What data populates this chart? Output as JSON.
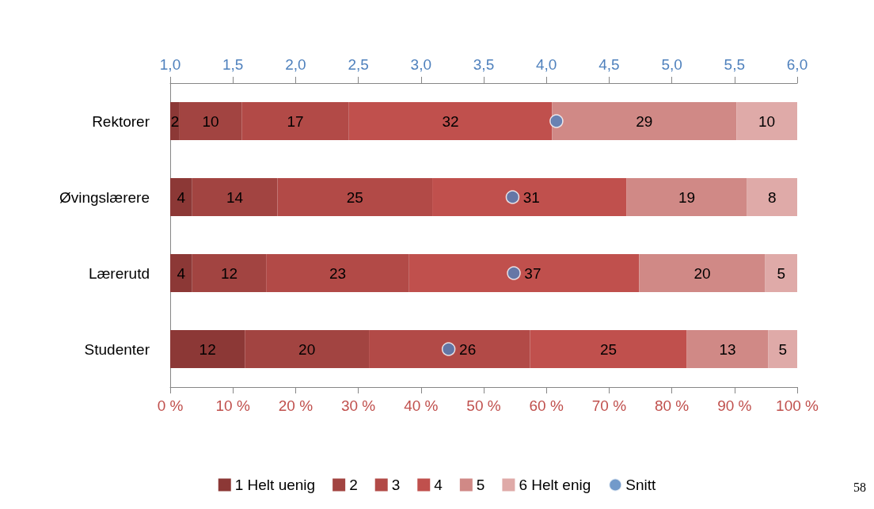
{
  "chart_data": {
    "type": "bar",
    "orientation": "horizontal",
    "stacked": true,
    "grid": false,
    "legend": "bottom",
    "marker": "circle",
    "categories": [
      "Rektorer",
      "Øvingslærere",
      "Lærerutd",
      "Studenter"
    ],
    "xlim": [
      0,
      100
    ],
    "xticks": [
      {
        "value": 0,
        "label": "0 %"
      },
      {
        "value": 10,
        "label": "10 %"
      },
      {
        "value": 20,
        "label": "20 %"
      },
      {
        "value": 30,
        "label": "30 %"
      },
      {
        "value": 40,
        "label": "40 %"
      },
      {
        "value": 50,
        "label": "50 %"
      },
      {
        "value": 60,
        "label": "60 %"
      },
      {
        "value": 70,
        "label": "70 %"
      },
      {
        "value": 80,
        "label": "80 %"
      },
      {
        "value": 90,
        "label": "90 %"
      },
      {
        "value": 100,
        "label": "100 %"
      }
    ],
    "x2lim": [
      1,
      6
    ],
    "x2ticks": [
      {
        "value": 1,
        "label": "1,0"
      },
      {
        "value": 1.5,
        "label": "1,5"
      },
      {
        "value": 2,
        "label": "2,0"
      },
      {
        "value": 2.5,
        "label": "2,5"
      },
      {
        "value": 3,
        "label": "3,0"
      },
      {
        "value": 3.5,
        "label": "3,5"
      },
      {
        "value": 4,
        "label": "4,0"
      },
      {
        "value": 4.5,
        "label": "4,5"
      },
      {
        "value": 5,
        "label": "5,0"
      },
      {
        "value": 5.5,
        "label": "5,5"
      },
      {
        "value": 6,
        "label": "6,0"
      }
    ],
    "series": [
      {
        "name": "1 Helt uenig",
        "color": "#8c3836",
        "values": [
          1.5,
          3.5,
          3.5,
          11.9
        ],
        "value_labels": [
          "2",
          "4",
          "4",
          "12"
        ]
      },
      {
        "name": "2",
        "color": "#a24441",
        "values": [
          9.9,
          13.6,
          11.8,
          19.8
        ],
        "value_labels": [
          "10",
          "14",
          "12",
          "20"
        ]
      },
      {
        "name": "3",
        "color": "#b24a47",
        "values": [
          17.1,
          24.7,
          22.8,
          25.7
        ],
        "value_labels": [
          "17",
          "25",
          "23",
          "26"
        ]
      },
      {
        "name": "4",
        "color": "#c0504d",
        "values": [
          32.4,
          31.0,
          36.7,
          25.0
        ],
        "value_labels": [
          "32",
          "31",
          "37",
          "25"
        ]
      },
      {
        "name": "5",
        "color": "#d08986",
        "values": [
          29.4,
          19.2,
          20.1,
          13.0
        ],
        "value_labels": [
          "29",
          "19",
          "20",
          "13"
        ]
      },
      {
        "name": "6 Helt enig",
        "color": "#dfaaa8",
        "values": [
          9.7,
          8.0,
          5.1,
          4.6
        ],
        "value_labels": [
          "10",
          "8",
          "5",
          "5"
        ]
      },
      {
        "name": "Snitt",
        "type": "scatter",
        "axis": "x2",
        "color": "#4f81bd",
        "values": [
          4.08,
          3.73,
          3.74,
          3.22
        ]
      }
    ],
    "annotations": [
      "58"
    ]
  }
}
